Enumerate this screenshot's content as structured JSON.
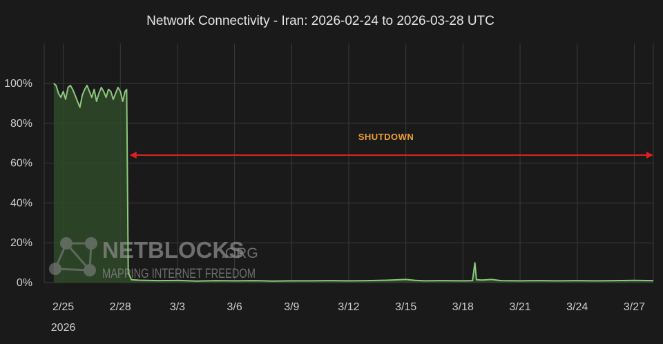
{
  "chart_data": {
    "type": "area",
    "title": "Network Connectivity - Iran: 2026-02-24 to 2026-03-28 UTC",
    "xlabel": "",
    "ylabel": "",
    "x_range": [
      "2026-02-24",
      "2026-03-28"
    ],
    "ylim": [
      0,
      100
    ],
    "y_ticks": [
      {
        "value": 0,
        "label": "0%"
      },
      {
        "value": 20,
        "label": "20%"
      },
      {
        "value": 40,
        "label": "40%"
      },
      {
        "value": 60,
        "label": "60%"
      },
      {
        "value": 80,
        "label": "80%"
      },
      {
        "value": 100,
        "label": "100%"
      }
    ],
    "x_ticks": [
      {
        "date": "2026-02-25",
        "label": "2/25",
        "sublabel": "2026"
      },
      {
        "date": "2026-02-28",
        "label": "2/28"
      },
      {
        "date": "2026-03-03",
        "label": "3/3"
      },
      {
        "date": "2026-03-06",
        "label": "3/6"
      },
      {
        "date": "2026-03-09",
        "label": "3/9"
      },
      {
        "date": "2026-03-12",
        "label": "3/12"
      },
      {
        "date": "2026-03-15",
        "label": "3/15"
      },
      {
        "date": "2026-03-18",
        "label": "3/18"
      },
      {
        "date": "2026-03-21",
        "label": "3/21"
      },
      {
        "date": "2026-03-24",
        "label": "3/24"
      },
      {
        "date": "2026-03-27",
        "label": "3/27"
      }
    ],
    "grid": true,
    "colors": {
      "background": "#1a1a1a",
      "line": "#8fc77e",
      "fill": "#2f4a2a",
      "grid": "#3a3a3a",
      "annotation_arrow": "#e02020",
      "annotation_text": "#f0a030"
    },
    "series": [
      {
        "points": [
          [
            "2026-02-24T12:00",
            100
          ],
          [
            "2026-02-24T15:00",
            99
          ],
          [
            "2026-02-24T18:00",
            95
          ],
          [
            "2026-02-24T21:00",
            93
          ],
          [
            "2026-02-25T00:00",
            96
          ],
          [
            "2026-02-25T03:00",
            92
          ],
          [
            "2026-02-25T06:00",
            98
          ],
          [
            "2026-02-25T09:00",
            99
          ],
          [
            "2026-02-25T12:00",
            97
          ],
          [
            "2026-02-25T15:00",
            94
          ],
          [
            "2026-02-25T18:00",
            91
          ],
          [
            "2026-02-25T21:00",
            88
          ],
          [
            "2026-02-26T00:00",
            94
          ],
          [
            "2026-02-26T03:00",
            97
          ],
          [
            "2026-02-26T06:00",
            99
          ],
          [
            "2026-02-26T09:00",
            96
          ],
          [
            "2026-02-26T12:00",
            93
          ],
          [
            "2026-02-26T15:00",
            97
          ],
          [
            "2026-02-26T18:00",
            91
          ],
          [
            "2026-02-26T21:00",
            95
          ],
          [
            "2026-02-27T00:00",
            98
          ],
          [
            "2026-02-27T03:00",
            96
          ],
          [
            "2026-02-27T06:00",
            93
          ],
          [
            "2026-02-27T09:00",
            97
          ],
          [
            "2026-02-27T12:00",
            96
          ],
          [
            "2026-02-27T15:00",
            92
          ],
          [
            "2026-02-27T18:00",
            95
          ],
          [
            "2026-02-27T21:00",
            98
          ],
          [
            "2026-02-28T00:00",
            96
          ],
          [
            "2026-02-28T03:00",
            91
          ],
          [
            "2026-02-28T06:00",
            96
          ],
          [
            "2026-02-28T08:00",
            97
          ],
          [
            "2026-02-28T10:00",
            5
          ],
          [
            "2026-02-28T14:00",
            1.5
          ],
          [
            "2026-03-01T00:00",
            1.2
          ],
          [
            "2026-03-02T00:00",
            1
          ],
          [
            "2026-03-03T00:00",
            1.1
          ],
          [
            "2026-03-04T00:00",
            0.8
          ],
          [
            "2026-03-05T00:00",
            1
          ],
          [
            "2026-03-06T00:00",
            0.9
          ],
          [
            "2026-03-07T00:00",
            1
          ],
          [
            "2026-03-08T00:00",
            0.8
          ],
          [
            "2026-03-09T00:00",
            0.9
          ],
          [
            "2026-03-10T00:00",
            0.9
          ],
          [
            "2026-03-11T00:00",
            1
          ],
          [
            "2026-03-12T00:00",
            0.9
          ],
          [
            "2026-03-13T00:00",
            1
          ],
          [
            "2026-03-14T00:00",
            1.2
          ],
          [
            "2026-03-15T00:00",
            1.6
          ],
          [
            "2026-03-15T12:00",
            1.1
          ],
          [
            "2026-03-16T00:00",
            0.9
          ],
          [
            "2026-03-17T00:00",
            1
          ],
          [
            "2026-03-18T00:00",
            0.9
          ],
          [
            "2026-03-18T12:00",
            1
          ],
          [
            "2026-03-18T15:00",
            10
          ],
          [
            "2026-03-18T17:00",
            1.5
          ],
          [
            "2026-03-19T00:00",
            1.3
          ],
          [
            "2026-03-19T12:00",
            1.6
          ],
          [
            "2026-03-20T00:00",
            1
          ],
          [
            "2026-03-21T00:00",
            0.9
          ],
          [
            "2026-03-22T00:00",
            1
          ],
          [
            "2026-03-23T00:00",
            0.9
          ],
          [
            "2026-03-24T00:00",
            1
          ],
          [
            "2026-03-25T00:00",
            0.9
          ],
          [
            "2026-03-26T00:00",
            1
          ],
          [
            "2026-03-27T00:00",
            1.1
          ],
          [
            "2026-03-28T00:00",
            1
          ]
        ]
      }
    ],
    "annotation": {
      "text": "SHUTDOWN",
      "from": "2026-02-28T10:00",
      "to": "2026-03-28T00:00",
      "y": 64
    },
    "watermark": {
      "main": "NETBLOCKS",
      "suffix": ".ORG",
      "tagline": "MAPPING INTERNET FREEDOM",
      "icon": "network-nodes-icon"
    }
  }
}
